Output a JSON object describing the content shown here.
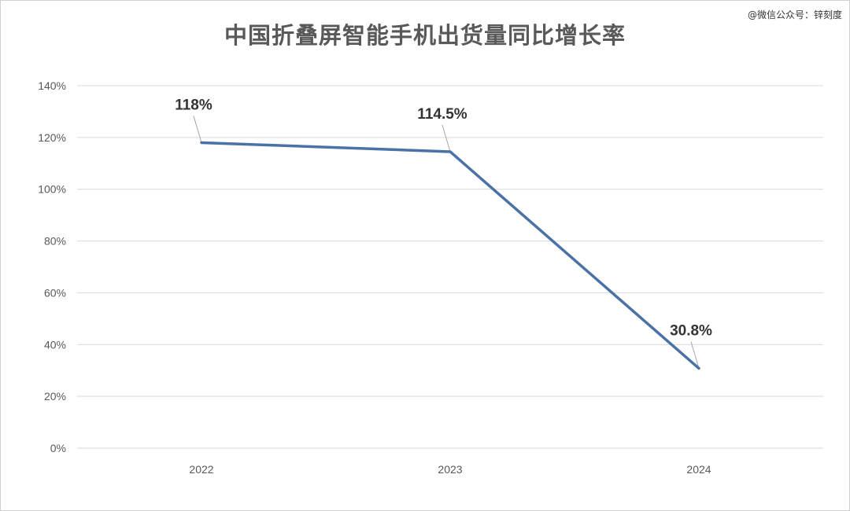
{
  "watermark": "@微信公众号：锌刻度",
  "chart_data": {
    "type": "line",
    "title": "中国折叠屏智能手机出货量同比增长率",
    "xlabel": "",
    "ylabel": "",
    "categories": [
      "2022",
      "2023",
      "2024"
    ],
    "series": [
      {
        "name": "",
        "values": [
          118,
          114.5,
          30.8
        ],
        "labels": [
          "118%",
          "114.5%",
          "30.8%"
        ]
      }
    ],
    "y_ticks": [
      "0%",
      "20%",
      "40%",
      "60%",
      "80%",
      "100%",
      "120%",
      "140%"
    ],
    "ylim": [
      0,
      140
    ],
    "grid": true,
    "legend": "none",
    "colors": {
      "line": "#4a72a6",
      "grid": "#d9d9d9",
      "text": "#595959"
    }
  }
}
